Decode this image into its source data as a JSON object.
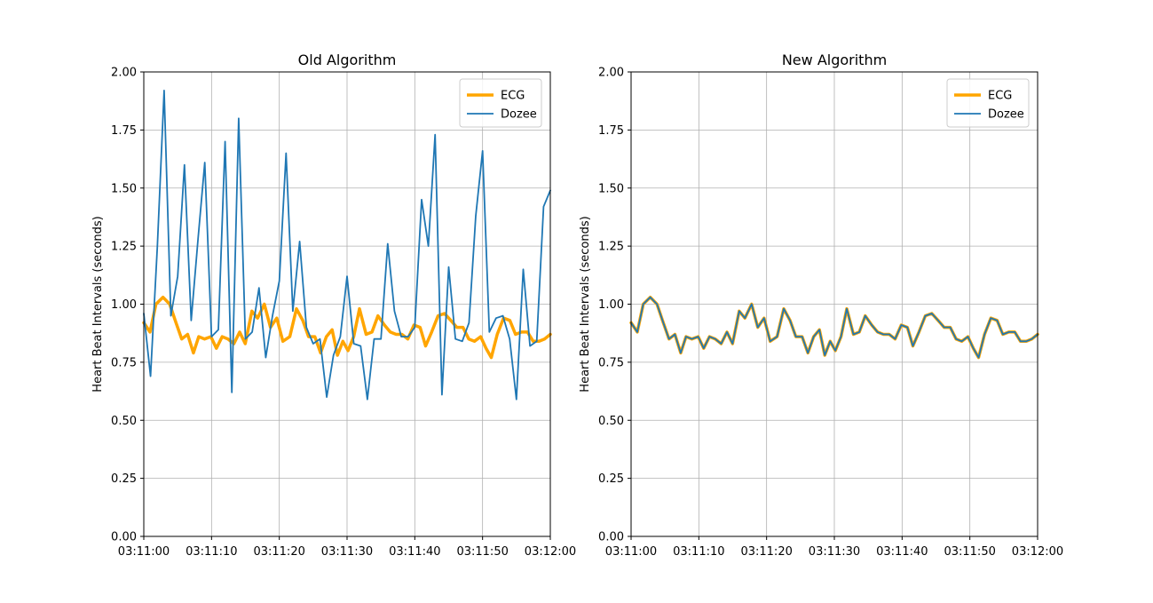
{
  "chart_data": [
    {
      "type": "line",
      "title": "Old Algorithm",
      "xlabel": "",
      "ylabel": "Heart Beat Intervals (seconds)",
      "ylim": [
        0,
        2
      ],
      "yticks": [
        "0.00",
        "0.25",
        "0.50",
        "0.75",
        "1.00",
        "1.25",
        "1.50",
        "1.75",
        "2.00"
      ],
      "xlim": [
        "03:11:00",
        "03:12:00"
      ],
      "xticks": [
        "03:11:00",
        "03:11:10",
        "03:11:20",
        "03:11:30",
        "03:11:40",
        "03:11:50",
        "03:12:00"
      ],
      "grid": true,
      "legend": "top-right",
      "series": [
        {
          "name": "ECG",
          "color": "#ffa500",
          "x": [
            0,
            0.92,
            1.8,
            2.83,
            3.83,
            4.75,
            5.6,
            6.47,
            7.32,
            8.11,
            8.97,
            9.9,
            10.71,
            11.57,
            12.42,
            13.3,
            14.15,
            14.98,
            15.95,
            16.79,
            17.79,
            18.69,
            19.63,
            20.53,
            21.55,
            22.53,
            23.46,
            24.32,
            25.24,
            26.09,
            26.95,
            27.8,
            28.58,
            29.38,
            30.14,
            30.98,
            31.84,
            32.82,
            33.68,
            34.56,
            35.51,
            36.38,
            37.25,
            38.1,
            38.97,
            39.88,
            40.78,
            41.6,
            42.48,
            43.43,
            44.38,
            45.31,
            46.21,
            47.11,
            47.96,
            48.8,
            49.71,
            50.52,
            51.29,
            52.16,
            53.09,
            54.03,
            54.87,
            55.75,
            56.63,
            57.47,
            58.34,
            59.15,
            60
          ],
          "values": [
            0.92,
            0.88,
            1.0,
            1.03,
            1.0,
            0.92,
            0.85,
            0.87,
            0.79,
            0.86,
            0.85,
            0.86,
            0.81,
            0.86,
            0.85,
            0.83,
            0.88,
            0.83,
            0.97,
            0.94,
            1.0,
            0.9,
            0.94,
            0.84,
            0.86,
            0.98,
            0.93,
            0.86,
            0.86,
            0.79,
            0.86,
            0.89,
            0.78,
            0.84,
            0.8,
            0.86,
            0.98,
            0.87,
            0.88,
            0.95,
            0.91,
            0.88,
            0.87,
            0.87,
            0.85,
            0.91,
            0.9,
            0.82,
            0.88,
            0.95,
            0.96,
            0.93,
            0.9,
            0.9,
            0.85,
            0.84,
            0.86,
            0.81,
            0.77,
            0.87,
            0.94,
            0.93,
            0.87,
            0.88,
            0.88,
            0.84,
            0.84,
            0.85,
            0.87
          ]
        },
        {
          "name": "Dozee",
          "color": "#1f77b4",
          "x": [
            0,
            1,
            2,
            3,
            4,
            5,
            6,
            7,
            8,
            9,
            10,
            11,
            12,
            13,
            14,
            15,
            16,
            17,
            18,
            19,
            20,
            21,
            22,
            23,
            24,
            25,
            26,
            27,
            28,
            29,
            30,
            31,
            32,
            33,
            34,
            35,
            36,
            37,
            38,
            39,
            40,
            41,
            42,
            43,
            44,
            45,
            46,
            47,
            48,
            49,
            50,
            51,
            52,
            53,
            54,
            55,
            56,
            57,
            58,
            59,
            60
          ],
          "values": [
            0.96,
            0.69,
            1.25,
            1.92,
            0.95,
            1.12,
            1.6,
            0.93,
            1.28,
            1.61,
            0.86,
            0.89,
            1.7,
            0.62,
            1.8,
            0.85,
            0.88,
            1.07,
            0.77,
            0.95,
            1.1,
            1.65,
            0.97,
            1.27,
            0.9,
            0.83,
            0.85,
            0.6,
            0.78,
            0.86,
            1.12,
            0.83,
            0.82,
            0.59,
            0.85,
            0.85,
            1.26,
            0.97,
            0.86,
            0.86,
            0.9,
            1.45,
            1.25,
            1.73,
            0.61,
            1.16,
            0.85,
            0.84,
            0.92,
            1.38,
            1.66,
            0.88,
            0.94,
            0.95,
            0.85,
            0.59,
            1.15,
            0.82,
            0.84,
            1.42,
            1.49
          ]
        }
      ]
    },
    {
      "type": "line",
      "title": "New Algorithm",
      "xlabel": "",
      "ylabel": "Heart Beat Intervals (seconds)",
      "ylim": [
        0,
        2
      ],
      "yticks": [
        "0.00",
        "0.25",
        "0.50",
        "0.75",
        "1.00",
        "1.25",
        "1.50",
        "1.75",
        "2.00"
      ],
      "xlim": [
        "03:11:00",
        "03:12:00"
      ],
      "xticks": [
        "03:11:00",
        "03:11:10",
        "03:11:20",
        "03:11:30",
        "03:11:40",
        "03:11:50",
        "03:12:00"
      ],
      "grid": true,
      "legend": "top-right",
      "series": [
        {
          "name": "ECG",
          "color": "#ffa500",
          "x": [
            0,
            0.92,
            1.8,
            2.83,
            3.83,
            4.75,
            5.6,
            6.47,
            7.32,
            8.11,
            8.97,
            9.9,
            10.71,
            11.57,
            12.42,
            13.3,
            14.15,
            14.98,
            15.95,
            16.79,
            17.79,
            18.69,
            19.63,
            20.53,
            21.55,
            22.53,
            23.46,
            24.32,
            25.24,
            26.09,
            26.95,
            27.8,
            28.58,
            29.38,
            30.14,
            30.98,
            31.84,
            32.82,
            33.68,
            34.56,
            35.51,
            36.38,
            37.25,
            38.1,
            38.97,
            39.88,
            40.78,
            41.6,
            42.48,
            43.43,
            44.38,
            45.31,
            46.21,
            47.11,
            47.96,
            48.8,
            49.71,
            50.52,
            51.29,
            52.16,
            53.09,
            54.03,
            54.87,
            55.75,
            56.63,
            57.47,
            58.34,
            59.15,
            60
          ],
          "values": [
            0.92,
            0.88,
            1.0,
            1.03,
            1.0,
            0.92,
            0.85,
            0.87,
            0.79,
            0.86,
            0.85,
            0.86,
            0.81,
            0.86,
            0.85,
            0.83,
            0.88,
            0.83,
            0.97,
            0.94,
            1.0,
            0.9,
            0.94,
            0.84,
            0.86,
            0.98,
            0.93,
            0.86,
            0.86,
            0.79,
            0.86,
            0.89,
            0.78,
            0.84,
            0.8,
            0.86,
            0.98,
            0.87,
            0.88,
            0.95,
            0.91,
            0.88,
            0.87,
            0.87,
            0.85,
            0.91,
            0.9,
            0.82,
            0.88,
            0.95,
            0.96,
            0.93,
            0.9,
            0.9,
            0.85,
            0.84,
            0.86,
            0.81,
            0.77,
            0.87,
            0.94,
            0.93,
            0.87,
            0.88,
            0.88,
            0.84,
            0.84,
            0.85,
            0.87
          ]
        },
        {
          "name": "Dozee",
          "color": "#1f77b4",
          "x": [
            0,
            0.92,
            1.8,
            2.83,
            3.83,
            4.75,
            5.6,
            6.47,
            7.32,
            8.11,
            8.97,
            9.9,
            10.71,
            11.57,
            12.42,
            13.3,
            14.15,
            14.98,
            15.95,
            16.79,
            17.79,
            18.69,
            19.63,
            20.53,
            21.55,
            22.53,
            23.46,
            24.32,
            25.24,
            26.09,
            26.95,
            27.8,
            28.58,
            29.38,
            30.14,
            30.98,
            31.84,
            32.82,
            33.68,
            34.56,
            35.51,
            36.38,
            37.25,
            38.1,
            38.97,
            39.88,
            40.78,
            41.6,
            42.48,
            43.43,
            44.38,
            45.31,
            46.21,
            47.11,
            47.96,
            48.8,
            49.71,
            50.52,
            51.29,
            52.16,
            53.09,
            54.03,
            54.87,
            55.75,
            56.63,
            57.47,
            58.34,
            59.15,
            60
          ],
          "values": [
            0.92,
            0.88,
            1.0,
            1.03,
            1.0,
            0.92,
            0.85,
            0.87,
            0.79,
            0.86,
            0.85,
            0.86,
            0.81,
            0.86,
            0.85,
            0.83,
            0.88,
            0.83,
            0.97,
            0.94,
            1.0,
            0.9,
            0.94,
            0.84,
            0.86,
            0.98,
            0.93,
            0.86,
            0.86,
            0.79,
            0.86,
            0.89,
            0.78,
            0.84,
            0.8,
            0.86,
            0.98,
            0.87,
            0.88,
            0.95,
            0.91,
            0.88,
            0.87,
            0.87,
            0.85,
            0.91,
            0.9,
            0.82,
            0.88,
            0.95,
            0.96,
            0.93,
            0.9,
            0.9,
            0.85,
            0.84,
            0.86,
            0.81,
            0.77,
            0.87,
            0.94,
            0.93,
            0.87,
            0.88,
            0.88,
            0.84,
            0.84,
            0.85,
            0.87
          ]
        }
      ]
    }
  ]
}
